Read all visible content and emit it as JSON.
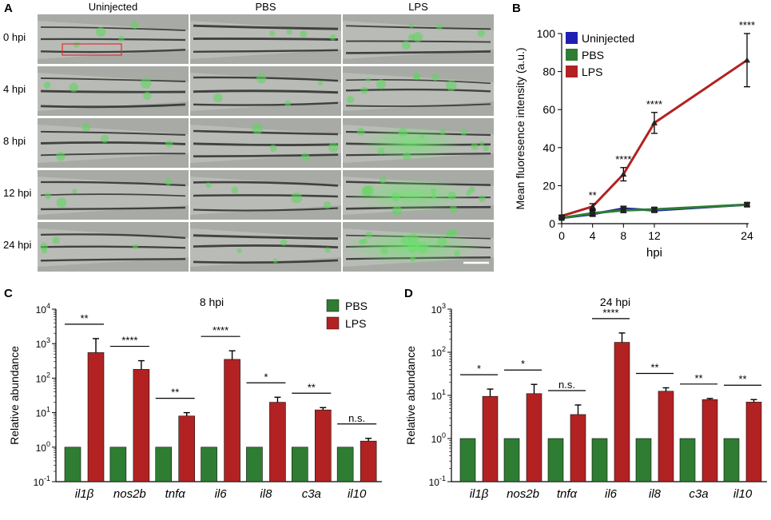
{
  "panel_a": {
    "letter": "A",
    "columns": [
      "Uninjected",
      "PBS",
      "LPS"
    ],
    "rows": [
      "0 hpi",
      "4 hpi",
      "8 hpi",
      "12 hpi",
      "24 hpi"
    ]
  },
  "chart_data": [
    {
      "panel": "B",
      "type": "line",
      "xlabel": "hpi",
      "ylabel": "Mean fluoresence intensity (a.u.)",
      "x": [
        0,
        4,
        8,
        12,
        24
      ],
      "xticks": [
        "0",
        "4",
        "8",
        "12",
        "24"
      ],
      "ylim": [
        0,
        100
      ],
      "yticks": [
        "0",
        "20",
        "40",
        "60",
        "80",
        "100"
      ],
      "legend_position": "top-left",
      "series": [
        {
          "name": "Uninjected",
          "color": "#1f1fb4",
          "values": [
            3,
            5,
            8,
            7,
            10
          ],
          "errors": [
            0.5,
            1.0,
            1.2,
            1.0,
            1.0
          ]
        },
        {
          "name": "PBS",
          "color": "#2e7d32",
          "values": [
            3,
            5.5,
            7,
            7.5,
            10
          ],
          "errors": [
            0.5,
            1.5,
            1.2,
            1.0,
            1.0
          ]
        },
        {
          "name": "LPS",
          "color": "#b22222",
          "values": [
            4,
            9,
            26,
            53,
            86
          ],
          "errors": [
            0.5,
            1.5,
            3.5,
            5.5,
            14
          ]
        }
      ],
      "annotations": [
        {
          "x": 4,
          "text": "**"
        },
        {
          "x": 8,
          "text": "****"
        },
        {
          "x": 12,
          "text": "****"
        },
        {
          "x": 24,
          "text": "****"
        }
      ]
    },
    {
      "panel": "C",
      "type": "bar",
      "title": "8 hpi",
      "ylabel": "Relative abundance",
      "yscale": "log",
      "ylim": [
        0.1,
        10000
      ],
      "yticks": [
        "10-1",
        "100",
        "101",
        "102",
        "103",
        "104"
      ],
      "categories": [
        "il1β",
        "nos2b",
        "tnfα",
        "il6",
        "il8",
        "c3a",
        "il10"
      ],
      "legend_position": "top-right",
      "series": [
        {
          "name": "PBS",
          "color": "#2e7d32",
          "values": [
            1,
            1,
            1,
            1,
            1,
            1,
            1
          ]
        },
        {
          "name": "LPS",
          "color": "#b22222",
          "values": [
            550,
            180,
            8,
            350,
            20,
            12,
            1.5
          ],
          "err_upper": [
            1400,
            320,
            10,
            620,
            28,
            14,
            1.8
          ]
        }
      ],
      "significance": [
        "**",
        "****",
        "**",
        "****",
        "*",
        "**",
        "n.s."
      ]
    },
    {
      "panel": "D",
      "type": "bar",
      "title": "24 hpi",
      "ylabel": "Relative abundance",
      "yscale": "log",
      "ylim": [
        0.1,
        1000
      ],
      "yticks": [
        "10-1",
        "100",
        "101",
        "102",
        "103"
      ],
      "categories": [
        "il1β",
        "nos2b",
        "tnfα",
        "il6",
        "il8",
        "c3a",
        "il10"
      ],
      "series": [
        {
          "name": "PBS",
          "color": "#2e7d32",
          "values": [
            1,
            1,
            1,
            1,
            1,
            1,
            1
          ]
        },
        {
          "name": "LPS",
          "color": "#b22222",
          "values": [
            9.5,
            11,
            3.6,
            170,
            12.5,
            8,
            7
          ],
          "err_upper": [
            14,
            18,
            6,
            280,
            15,
            8.5,
            8
          ]
        }
      ],
      "significance": [
        "*",
        "*",
        "n.s.",
        "****",
        "**",
        "**",
        "**"
      ]
    }
  ]
}
